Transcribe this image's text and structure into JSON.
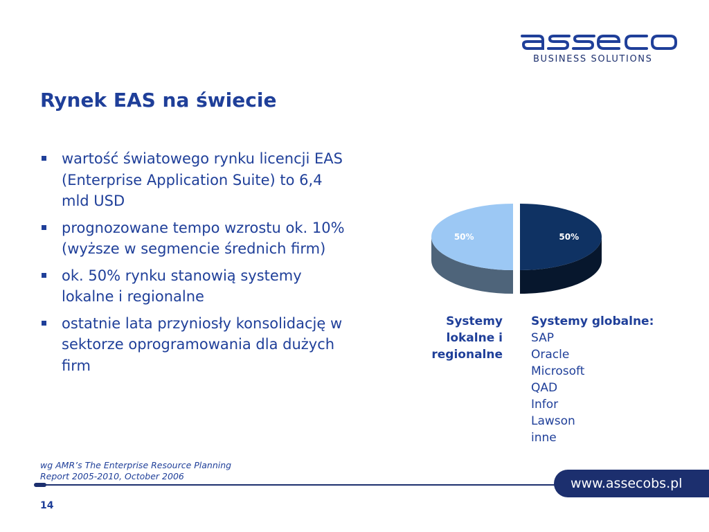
{
  "logo": {
    "wordmark": "asseco",
    "subtitle": "BUSINESS SOLUTIONS"
  },
  "slide": {
    "title": "Rynek EAS na świecie",
    "bullets": [
      "wartość światowego rynku licencji EAS (Enterprise Application Suite) to 6,4 mld USD",
      "prognozowane tempo wzrostu ok. 10% (wyższe w segmencie średnich firm)",
      "ok. 50% rynku stanowią systemy lokalne i regionalne",
      "ostatnie lata przyniosły konsolidację w sektorze oprogramowania dla dużych firm"
    ],
    "source_lines": [
      "wg AMR’s The Enterprise Resource Planning",
      "Report 2005-2010, October 2006"
    ]
  },
  "chart_data": {
    "type": "pie",
    "slices": [
      {
        "label_text": "50%",
        "value": 50,
        "color": "#0f3263"
      },
      {
        "label_text": "50%",
        "value": 50,
        "color": "#9cc8f4"
      }
    ]
  },
  "legend": {
    "local_lines": [
      "Systemy",
      "lokalne i",
      "regionalne"
    ],
    "global_heading": "Systemy globalne:",
    "global_items": [
      "SAP",
      "Oracle",
      "Microsoft",
      "QAD",
      "Infor",
      "Lawson",
      "inne"
    ]
  },
  "footer": {
    "url": "www.assecobs.pl",
    "page_number": "14"
  },
  "colors": {
    "accent": "#1f3f99",
    "dark_navy": "#1c2f6e"
  }
}
